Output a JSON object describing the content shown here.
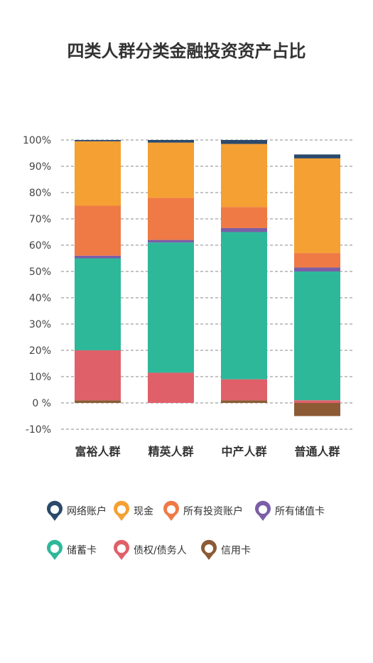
{
  "chart_data": {
    "type": "bar",
    "stacked": true,
    "title": "四类人群分类金融投资资产占比",
    "categories": [
      "富裕人群",
      "精英人群",
      "中产人群",
      "普通人群"
    ],
    "ylim": [
      -10,
      100
    ],
    "yticks": [
      -10,
      0,
      10,
      20,
      30,
      40,
      50,
      60,
      70,
      80,
      90,
      100
    ],
    "ytick_labels": [
      "-10%",
      "0 %",
      "10%",
      "20%",
      "30%",
      "40%",
      "50%",
      "60%",
      "70%",
      "80%",
      "90%",
      "100%"
    ],
    "grid": "horizontal-dashed",
    "legend_position": "bottom",
    "series": [
      {
        "name": "信用卡",
        "color": "#8c5a35",
        "values": [
          1,
          0,
          1,
          -5
        ]
      },
      {
        "name": "债权/债务人",
        "color": "#e0606a",
        "values": [
          19,
          11.5,
          8,
          1
        ]
      },
      {
        "name": "储蓄卡",
        "color": "#2eb89a",
        "values": [
          35,
          49.5,
          56,
          49
        ]
      },
      {
        "name": "所有储值卡",
        "color": "#7b5ea7",
        "values": [
          1,
          1,
          1.5,
          1.5
        ]
      },
      {
        "name": "所有投资账户",
        "color": "#ef7a45",
        "values": [
          19,
          16,
          8,
          5.5
        ]
      },
      {
        "name": "现金",
        "color": "#f5a033",
        "values": [
          24.5,
          21,
          24,
          36
        ]
      },
      {
        "name": "网络账户",
        "color": "#2b4a6b",
        "values": [
          0.5,
          1,
          1.5,
          1.5
        ]
      }
    ],
    "legend_order": [
      "网络账户",
      "现金",
      "所有投资账户",
      "所有储值卡",
      "储蓄卡",
      "债权/债务人",
      "信用卡"
    ]
  }
}
